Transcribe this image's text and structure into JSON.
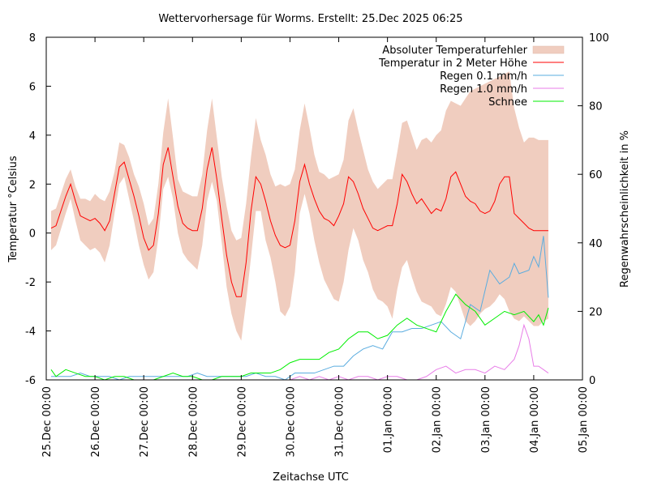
{
  "chart_data": {
    "type": "line",
    "title": "Wettervorhersage für Worms. Erstellt: 25.Dec 2025 06:25",
    "xlabel": "Zeitachse UTC",
    "ylabel": "Temperatur °Celsius",
    "y2label": "Regenwahrscheinlichkeit in %",
    "xlim_days": [
      0,
      11
    ],
    "ylim": [
      -6,
      8
    ],
    "y2lim": [
      0,
      100
    ],
    "x_ticks": [
      "25.Dec 00:00",
      "26.Dec 00:00",
      "27.Dec 00:00",
      "28.Dec 00:00",
      "29.Dec 00:00",
      "30.Dec 00:00",
      "31.Dec 00:00",
      "01.Jan 00:00",
      "02.Jan 00:00",
      "03.Jan 00:00",
      "04.Jan 00:00",
      "05.Jan 00:00"
    ],
    "y_ticks": [
      "-6",
      "-4",
      "-2",
      "0",
      "2",
      "4",
      "6",
      "8"
    ],
    "y2_ticks": [
      "0",
      "20",
      "40",
      "60",
      "80",
      "100"
    ],
    "grid": false,
    "legend_position": "top-right",
    "legend": [
      {
        "label": "Absoluter Temperaturfehler",
        "color": "#f0cdbf",
        "kind": "band"
      },
      {
        "label": "Temperatur in 2 Meter Höhe",
        "color": "#ff0000",
        "kind": "line"
      },
      {
        "label": "Regen 0.1 mm/h",
        "color": "#5aacdf",
        "kind": "line"
      },
      {
        "label": "Regen 1.0 mm/h",
        "color": "#e87ee8",
        "kind": "line"
      },
      {
        "label": "Schnee",
        "color": "#00ee00",
        "kind": "line"
      }
    ],
    "series": [
      {
        "name": "Temperatur in 2 Meter Höhe",
        "axis": "y",
        "x_days": [
          0.1,
          0.2,
          0.4,
          0.5,
          0.6,
          0.7,
          0.8,
          0.9,
          1.0,
          1.1,
          1.2,
          1.3,
          1.4,
          1.5,
          1.6,
          1.7,
          1.8,
          1.9,
          2.0,
          2.1,
          2.2,
          2.3,
          2.4,
          2.5,
          2.6,
          2.7,
          2.8,
          2.9,
          3.0,
          3.1,
          3.2,
          3.3,
          3.4,
          3.5,
          3.6,
          3.7,
          3.8,
          3.9,
          4.0,
          4.1,
          4.2,
          4.3,
          4.4,
          4.5,
          4.6,
          4.7,
          4.8,
          4.9,
          5.0,
          5.1,
          5.2,
          5.3,
          5.4,
          5.5,
          5.6,
          5.7,
          5.8,
          5.9,
          6.0,
          6.1,
          6.2,
          6.3,
          6.4,
          6.5,
          6.6,
          6.7,
          6.8,
          6.9,
          7.0,
          7.1,
          7.2,
          7.3,
          7.4,
          7.5,
          7.6,
          7.7,
          7.8,
          7.9,
          8.0,
          8.1,
          8.2,
          8.3,
          8.4,
          8.5,
          8.6,
          8.7,
          8.8,
          8.9,
          9.0,
          9.1,
          9.2,
          9.3,
          9.4,
          9.5,
          9.6,
          9.7,
          9.8,
          9.9,
          10.0,
          10.1,
          10.2,
          10.3
        ],
        "values": [
          0.2,
          0.3,
          1.5,
          2.0,
          1.3,
          0.7,
          0.6,
          0.5,
          0.6,
          0.4,
          0.1,
          0.5,
          1.6,
          2.7,
          2.9,
          2.2,
          1.5,
          0.7,
          -0.2,
          -0.7,
          -0.5,
          0.8,
          2.8,
          3.5,
          2.3,
          1.1,
          0.4,
          0.2,
          0.1,
          0.1,
          1.0,
          2.6,
          3.5,
          2.2,
          0.6,
          -0.9,
          -2.0,
          -2.6,
          -2.6,
          -1.2,
          0.9,
          2.3,
          2.0,
          1.3,
          0.5,
          -0.1,
          -0.5,
          -0.6,
          -0.5,
          0.5,
          2.1,
          2.8,
          2.0,
          1.4,
          0.9,
          0.6,
          0.5,
          0.3,
          0.7,
          1.2,
          2.3,
          2.1,
          1.6,
          1.0,
          0.6,
          0.2,
          0.1,
          0.2,
          0.3,
          0.3,
          1.2,
          2.4,
          2.1,
          1.6,
          1.2,
          1.4,
          1.1,
          0.8,
          1.0,
          0.9,
          1.4,
          2.3,
          2.5,
          2.0,
          1.5,
          1.3,
          1.2,
          0.9,
          0.8,
          0.9,
          1.3,
          2.0,
          2.3,
          2.3,
          0.8,
          0.6,
          0.4,
          0.2,
          0.1,
          0.1,
          0.1,
          0.1
        ]
      },
      {
        "name": "Absoluter Temperaturfehler",
        "axis": "y",
        "x_days": [
          0.1,
          0.2,
          0.4,
          0.5,
          0.6,
          0.7,
          0.8,
          0.9,
          1.0,
          1.1,
          1.2,
          1.3,
          1.4,
          1.5,
          1.6,
          1.7,
          1.8,
          1.9,
          2.0,
          2.1,
          2.2,
          2.3,
          2.4,
          2.5,
          2.6,
          2.7,
          2.8,
          2.9,
          3.0,
          3.1,
          3.2,
          3.3,
          3.4,
          3.5,
          3.6,
          3.7,
          3.8,
          3.9,
          4.0,
          4.1,
          4.2,
          4.3,
          4.4,
          4.5,
          4.6,
          4.7,
          4.8,
          4.9,
          5.0,
          5.1,
          5.2,
          5.3,
          5.4,
          5.5,
          5.6,
          5.7,
          5.8,
          5.9,
          6.0,
          6.1,
          6.2,
          6.3,
          6.4,
          6.5,
          6.6,
          6.7,
          6.8,
          6.9,
          7.0,
          7.1,
          7.2,
          7.3,
          7.4,
          7.5,
          7.6,
          7.7,
          7.8,
          7.9,
          8.0,
          8.1,
          8.2,
          8.3,
          8.4,
          8.5,
          8.6,
          8.7,
          8.8,
          8.9,
          9.0,
          9.1,
          9.2,
          9.3,
          9.4,
          9.5,
          9.6,
          9.7,
          9.8,
          9.9,
          10.0,
          10.1,
          10.2,
          10.3
        ],
        "lower": [
          -0.7,
          -0.5,
          0.8,
          1.4,
          0.5,
          -0.3,
          -0.5,
          -0.7,
          -0.6,
          -0.8,
          -1.2,
          -0.5,
          0.8,
          2.0,
          2.3,
          1.4,
          0.5,
          -0.5,
          -1.3,
          -1.9,
          -1.6,
          -0.2,
          1.8,
          2.3,
          1.4,
          0.0,
          -0.8,
          -1.1,
          -1.3,
          -1.5,
          -0.5,
          1.3,
          2.1,
          1.3,
          -0.4,
          -2.2,
          -3.3,
          -4.0,
          -4.4,
          -2.8,
          -1.0,
          0.9,
          0.9,
          -0.3,
          -1.0,
          -2.0,
          -3.2,
          -3.4,
          -3.0,
          -1.6,
          0.8,
          1.6,
          0.8,
          -0.3,
          -1.2,
          -1.9,
          -2.3,
          -2.7,
          -2.8,
          -2.0,
          -0.7,
          0.2,
          -0.3,
          -1.1,
          -1.6,
          -2.3,
          -2.7,
          -2.8,
          -3.0,
          -3.5,
          -2.3,
          -1.4,
          -1.1,
          -1.8,
          -2.4,
          -2.8,
          -2.9,
          -3.0,
          -3.3,
          -3.4,
          -2.9,
          -2.2,
          -2.4,
          -3.0,
          -3.6,
          -3.8,
          -3.6,
          -3.3,
          -3.1,
          -3.0,
          -2.8,
          -2.5,
          -2.7,
          -3.2,
          -3.5,
          -3.6,
          -3.4,
          -3.6,
          -3.8,
          -3.8,
          -3.6,
          -3.5
        ],
        "upper": [
          0.9,
          1.0,
          2.2,
          2.6,
          1.9,
          1.4,
          1.4,
          1.3,
          1.6,
          1.4,
          1.3,
          1.7,
          2.5,
          3.7,
          3.6,
          3.1,
          2.4,
          1.9,
          1.2,
          0.3,
          0.6,
          2.0,
          4.1,
          5.5,
          3.9,
          2.2,
          1.7,
          1.6,
          1.5,
          1.5,
          2.4,
          4.2,
          5.5,
          3.9,
          2.3,
          1.1,
          0.1,
          -0.3,
          -0.2,
          1.2,
          3.1,
          4.7,
          3.8,
          3.2,
          2.4,
          1.9,
          2.0,
          1.9,
          2.0,
          2.6,
          4.2,
          5.3,
          4.3,
          3.2,
          2.5,
          2.4,
          2.2,
          2.3,
          2.4,
          3.0,
          4.6,
          5.1,
          4.2,
          3.4,
          2.6,
          2.1,
          1.8,
          2.0,
          2.2,
          2.2,
          3.3,
          4.5,
          4.6,
          4.0,
          3.4,
          3.8,
          3.9,
          3.7,
          4.0,
          4.2,
          5.0,
          5.4,
          5.3,
          5.2,
          5.5,
          5.8,
          5.9,
          6.0,
          6.1,
          6.2,
          6.3,
          6.4,
          6.5,
          6.6,
          5.1,
          4.3,
          3.7,
          3.9,
          3.9,
          3.8,
          3.8,
          3.8
        ]
      },
      {
        "name": "Regen 0.1 mm/h",
        "axis": "y2",
        "x_days": [
          0.1,
          0.3,
          0.5,
          0.7,
          0.9,
          1.1,
          1.3,
          1.5,
          1.7,
          1.9,
          2.1,
          2.3,
          2.5,
          2.7,
          2.9,
          3.1,
          3.3,
          3.5,
          3.7,
          3.9,
          4.1,
          4.3,
          4.5,
          4.7,
          4.9,
          5.1,
          5.3,
          5.5,
          5.7,
          5.9,
          6.1,
          6.3,
          6.5,
          6.7,
          6.9,
          7.1,
          7.3,
          7.5,
          7.7,
          7.9,
          8.1,
          8.3,
          8.5,
          8.7,
          8.9,
          9.0,
          9.1,
          9.3,
          9.5,
          9.6,
          9.7,
          9.9,
          10.0,
          10.1,
          10.2,
          10.3
        ],
        "values": [
          1,
          1,
          1,
          2,
          1,
          1,
          1,
          0,
          1,
          1,
          1,
          1,
          1,
          1,
          1,
          2,
          1,
          1,
          1,
          1,
          1,
          2,
          1,
          1,
          0,
          2,
          2,
          2,
          3,
          4,
          4,
          7,
          9,
          10,
          9,
          14,
          14,
          15,
          15,
          16,
          17,
          14,
          12,
          22,
          20,
          26,
          32,
          28,
          30,
          34,
          31,
          32,
          36,
          33,
          42,
          24
        ]
      },
      {
        "name": "Regen 1.0 mm/h",
        "axis": "y2",
        "x_days": [
          5.0,
          5.2,
          5.4,
          5.6,
          5.8,
          6.0,
          6.2,
          6.4,
          6.6,
          6.8,
          7.0,
          7.2,
          7.4,
          7.6,
          7.8,
          8.0,
          8.2,
          8.4,
          8.6,
          8.8,
          9.0,
          9.2,
          9.4,
          9.6,
          9.7,
          9.8,
          9.9,
          10.0,
          10.1,
          10.2,
          10.3
        ],
        "values": [
          0,
          1,
          0,
          1,
          0,
          1,
          0,
          1,
          1,
          0,
          1,
          1,
          0,
          0,
          1,
          3,
          4,
          2,
          3,
          3,
          2,
          4,
          3,
          6,
          10,
          16,
          12,
          4,
          4,
          3,
          2
        ]
      },
      {
        "name": "Schnee",
        "axis": "y2",
        "x_days": [
          0.1,
          0.2,
          0.4,
          0.6,
          0.8,
          1.0,
          1.2,
          1.4,
          1.6,
          1.8,
          2.0,
          2.2,
          2.4,
          2.6,
          2.8,
          3.0,
          3.2,
          3.4,
          3.6,
          3.8,
          4.0,
          4.2,
          4.4,
          4.6,
          4.8,
          5.0,
          5.2,
          5.4,
          5.6,
          5.8,
          6.0,
          6.2,
          6.4,
          6.6,
          6.8,
          7.0,
          7.2,
          7.4,
          7.6,
          7.8,
          8.0,
          8.2,
          8.4,
          8.6,
          8.8,
          9.0,
          9.2,
          9.4,
          9.6,
          9.8,
          10.0,
          10.1,
          10.2,
          10.3
        ],
        "values": [
          3,
          1,
          3,
          2,
          1,
          1,
          0,
          1,
          1,
          0,
          0,
          0,
          1,
          2,
          1,
          1,
          0,
          0,
          1,
          1,
          1,
          2,
          2,
          2,
          3,
          5,
          6,
          6,
          6,
          8,
          9,
          12,
          14,
          14,
          12,
          13,
          16,
          18,
          16,
          15,
          14,
          20,
          25,
          22,
          20,
          16,
          18,
          20,
          19,
          20,
          17,
          19,
          16,
          21
        ]
      }
    ]
  }
}
